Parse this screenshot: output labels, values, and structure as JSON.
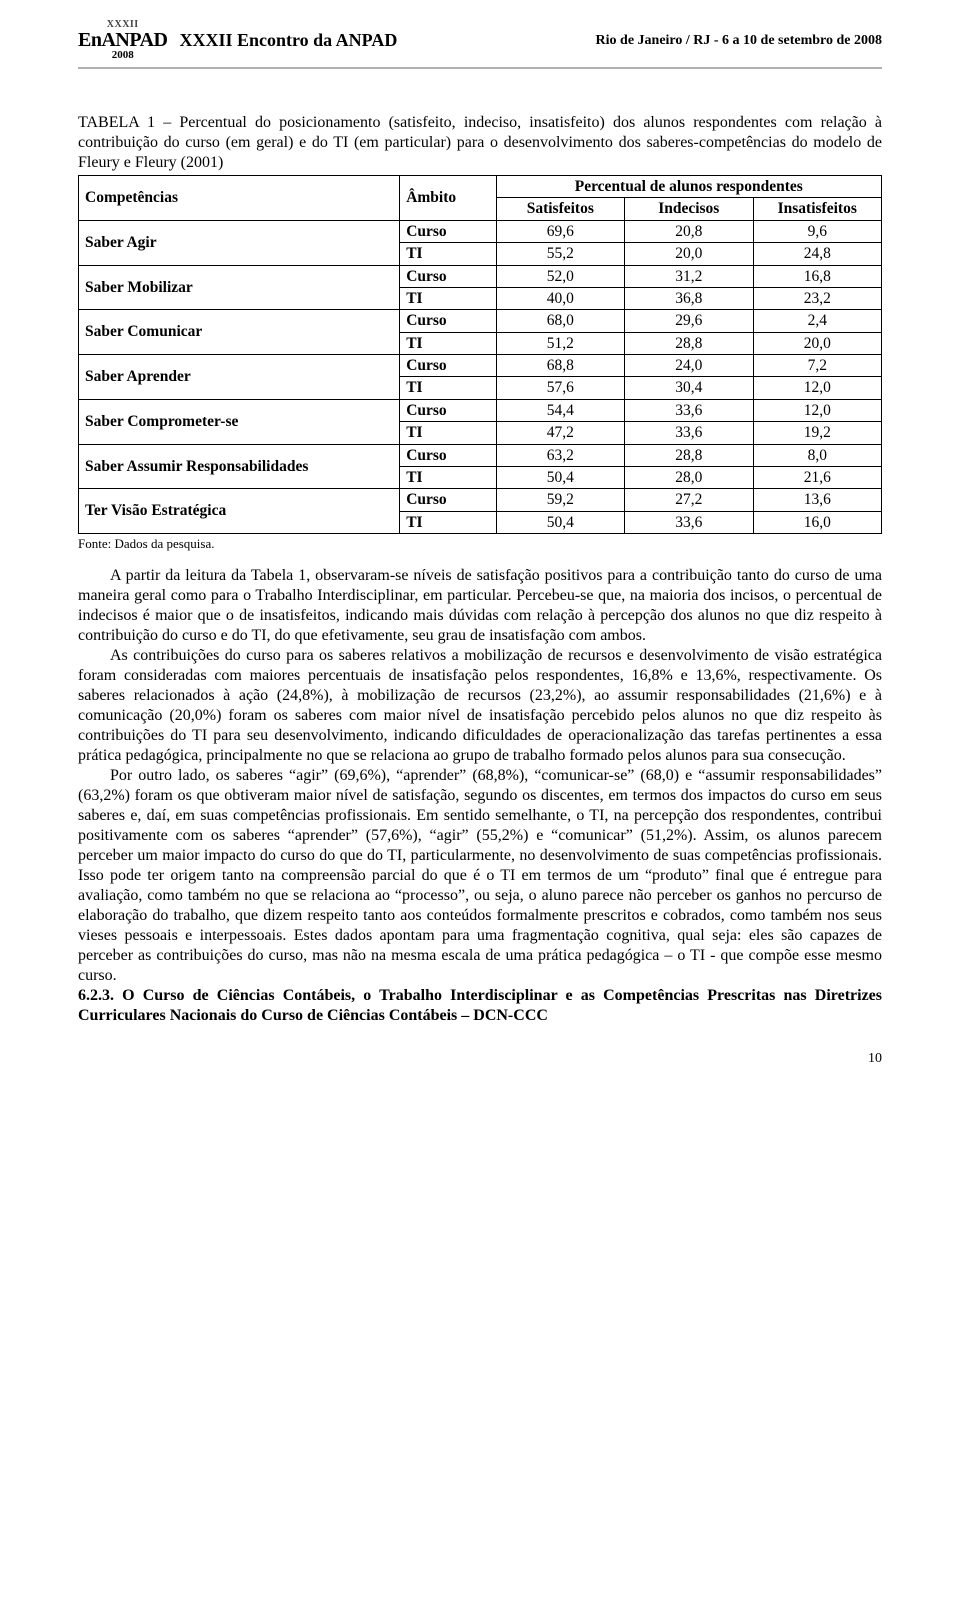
{
  "header": {
    "logo_top": "XXXII",
    "logo_mid": "EnANPAD",
    "logo_bot": "2008",
    "center": "XXXII Encontro da ANPAD",
    "right": "Rio de Janeiro / RJ - 6 a 10 de setembro de 2008"
  },
  "table_title": "TABELA 1 – Percentual do posicionamento (satisfeito, indeciso, insatisfeito) dos alunos respondentes com relação à contribuição do curso (em geral) e do TI (em particular) para o desenvolvimento dos saberes-competências do modelo de Fleury e Fleury (2001)",
  "table": {
    "head_row1": {
      "c0": "Competências",
      "c1": "Âmbito",
      "c2": "Percentual de alunos respondentes"
    },
    "head_row2": {
      "c2": "Satisfeitos",
      "c3": "Indecisos",
      "c4": "Insatisfeitos"
    },
    "rows": [
      {
        "comp": "Saber Agir",
        "amb": "Curso",
        "s": "69,6",
        "i": "20,8",
        "ins": "9,6"
      },
      {
        "comp": "",
        "amb": "TI",
        "s": "55,2",
        "i": "20,0",
        "ins": "24,8"
      },
      {
        "comp": "Saber Mobilizar",
        "amb": "Curso",
        "s": "52,0",
        "i": "31,2",
        "ins": "16,8"
      },
      {
        "comp": "",
        "amb": "TI",
        "s": "40,0",
        "i": "36,8",
        "ins": "23,2"
      },
      {
        "comp": "Saber Comunicar",
        "amb": "Curso",
        "s": "68,0",
        "i": "29,6",
        "ins": "2,4"
      },
      {
        "comp": "",
        "amb": "TI",
        "s": "51,2",
        "i": "28,8",
        "ins": "20,0"
      },
      {
        "comp": "Saber Aprender",
        "amb": "Curso",
        "s": "68,8",
        "i": "24,0",
        "ins": "7,2"
      },
      {
        "comp": "",
        "amb": "TI",
        "s": "57,6",
        "i": "30,4",
        "ins": "12,0"
      },
      {
        "comp": "Saber Comprometer-se",
        "amb": "Curso",
        "s": "54,4",
        "i": "33,6",
        "ins": "12,0"
      },
      {
        "comp": "",
        "amb": "TI",
        "s": "47,2",
        "i": "33,6",
        "ins": "19,2"
      },
      {
        "comp": "Saber Assumir Responsabilidades",
        "amb": "Curso",
        "s": "63,2",
        "i": "28,8",
        "ins": "8,0"
      },
      {
        "comp": "",
        "amb": "TI",
        "s": "50,4",
        "i": "28,0",
        "ins": "21,6"
      },
      {
        "comp": "Ter Visão Estratégica",
        "amb": "Curso",
        "s": "59,2",
        "i": "27,2",
        "ins": "13,6"
      },
      {
        "comp": "",
        "amb": "TI",
        "s": "50,4",
        "i": "33,6",
        "ins": "16,0"
      }
    ],
    "col_widths": [
      "40%",
      "12%",
      "16%",
      "16%",
      "16%"
    ]
  },
  "caption": "Fonte: Dados da pesquisa.",
  "paras": {
    "p1": "A partir da leitura da Tabela 1, observaram-se níveis de satisfação positivos para a contribuição tanto do curso de uma maneira geral como para o Trabalho Interdisciplinar, em particular. Percebeu-se que, na maioria dos incisos, o percentual de indecisos é maior que o de insatisfeitos, indicando mais dúvidas com relação à percepção dos alunos no que diz respeito à contribuição do curso e do TI, do que efetivamente, seu grau de insatisfação com ambos.",
    "p2": "As contribuições do curso para os saberes relativos a mobilização de recursos e desenvolvimento de visão estratégica foram consideradas com maiores percentuais de insatisfação pelos respondentes, 16,8% e 13,6%, respectivamente. Os saberes relacionados à ação (24,8%), à mobilização de recursos (23,2%), ao assumir responsabilidades (21,6%) e à comunicação (20,0%) foram os saberes com maior nível de insatisfação percebido pelos alunos no que diz respeito às contribuições do TI para seu desenvolvimento, indicando dificuldades de operacionalização das tarefas pertinentes a essa prática pedagógica, principalmente no que se relaciona ao grupo de trabalho formado pelos alunos para sua consecução.",
    "p3": "Por outro lado, os saberes “agir” (69,6%), “aprender” (68,8%), “comunicar-se” (68,0) e “assumir responsabilidades” (63,2%) foram os que obtiveram maior nível de satisfação, segundo os discentes, em termos dos impactos do curso em seus saberes e, daí, em suas competências profissionais. Em sentido semelhante, o TI, na percepção dos respondentes, contribui positivamente com os saberes “aprender” (57,6%), “agir” (55,2%) e “comunicar” (51,2%). Assim, os alunos parecem perceber um maior impacto do curso do que do TI, particularmente, no desenvolvimento de suas competências profissionais. Isso pode ter origem tanto na compreensão parcial do que é o TI em termos de um “produto” final que é entregue para avaliação, como também no que se relaciona ao “processo”, ou seja, o aluno parece não perceber os ganhos no percurso de elaboração do trabalho, que dizem respeito tanto aos conteúdos formalmente prescritos e cobrados, como também nos seus vieses pessoais e interpessoais. Estes dados apontam para uma fragmentação cognitiva, qual seja: eles são capazes de perceber as contribuições do curso, mas não na mesma escala de uma prática pedagógica – o TI - que compõe esse mesmo curso.",
    "section": "6.2.3. O Curso de Ciências Contábeis, o Trabalho Interdisciplinar e as Competências Prescritas nas Diretrizes Curriculares Nacionais do Curso de Ciências Contábeis – DCN-CCC"
  },
  "page_num": "10",
  "colors": {
    "text": "#000000",
    "bg": "#ffffff",
    "rule": "#b0b0b0"
  }
}
